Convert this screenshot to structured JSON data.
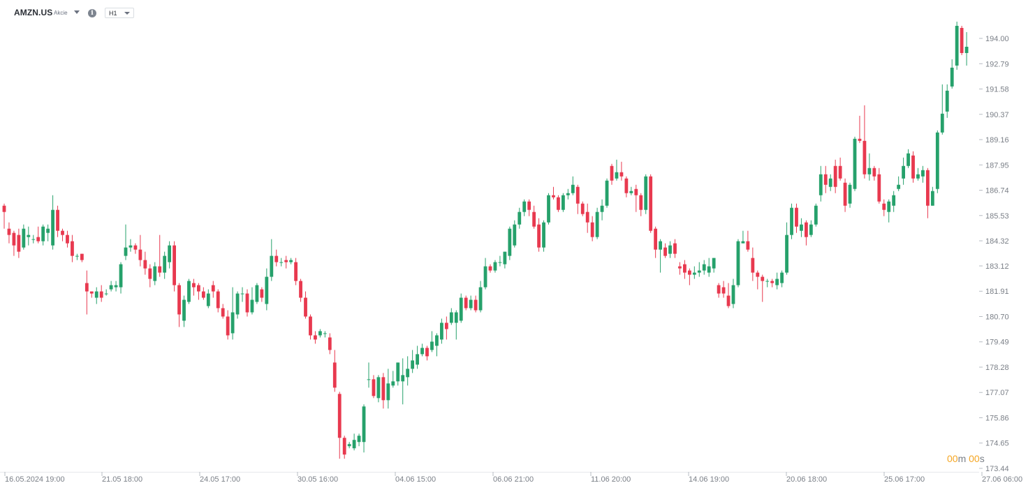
{
  "toolbar": {
    "symbol": "AMZN.US",
    "asset_type": "Akcie",
    "timeframe": "H1",
    "info_icon": "info-icon",
    "symbol_dropdown_icon": "chevron-down-icon",
    "timeframe_dropdown_icon": "chevron-down-icon"
  },
  "countdown": {
    "minutes": "00",
    "minutes_unit": "m",
    "seconds": "00",
    "seconds_unit": "s"
  },
  "colors": {
    "up": "#26a16b",
    "down": "#e8394f",
    "axis_text": "#7a7f87",
    "countdown": "#f5a623"
  },
  "chart_data": {
    "type": "candlestick",
    "symbol": "AMZN.US",
    "timeframe": "H1",
    "ylim": [
      173.44,
      194.8
    ],
    "y_ticks": [
      "194.00",
      "192.79",
      "191.58",
      "190.37",
      "189.16",
      "187.95",
      "186.74",
      "185.53",
      "184.32",
      "183.12",
      "181.91",
      "180.70",
      "179.49",
      "178.28",
      "177.07",
      "175.86",
      "174.65",
      "173.44"
    ],
    "x_tick_labels": [
      "16.05.2024 19:00",
      "21.05 18:00",
      "24.05 17:00",
      "30.05 16:00",
      "04.06 15:00",
      "06.06 21:00",
      "11.06 20:00",
      "14.06 19:00",
      "20.06 18:00",
      "25.06 17:00",
      "27.06 06:00"
    ],
    "candles": [
      [
        186.0,
        185.7,
        186.1,
        184.9
      ],
      [
        184.9,
        184.6,
        185.2,
        184.2
      ],
      [
        184.7,
        184.1,
        184.8,
        183.6
      ],
      [
        184.6,
        183.8,
        184.9,
        183.5
      ],
      [
        184.0,
        184.9,
        185.1,
        183.9
      ],
      [
        184.5,
        184.6,
        185.0,
        184.1
      ],
      [
        184.4,
        184.4,
        184.6,
        184.2
      ],
      [
        184.5,
        184.3,
        185.0,
        184.2
      ],
      [
        184.3,
        185.0,
        185.1,
        184.1
      ],
      [
        184.7,
        184.9,
        185.1,
        184.3
      ],
      [
        184.1,
        185.8,
        186.5,
        183.9
      ],
      [
        185.8,
        184.8,
        186.0,
        184.5
      ],
      [
        184.8,
        184.6,
        184.9,
        184.3
      ],
      [
        184.6,
        184.2,
        184.8,
        184.0
      ],
      [
        184.3,
        183.6,
        184.6,
        183.3
      ],
      [
        183.6,
        183.6,
        183.7,
        183.4
      ],
      [
        183.7,
        183.4,
        183.7,
        183.3
      ],
      [
        182.3,
        181.9,
        182.9,
        180.8
      ],
      [
        181.9,
        181.8,
        181.9,
        181.6
      ],
      [
        181.6,
        181.9,
        182.1,
        181.3
      ],
      [
        181.9,
        181.6,
        182.2,
        181.4
      ],
      [
        181.8,
        181.8,
        182.0,
        181.7
      ],
      [
        182.0,
        182.2,
        182.4,
        181.9
      ],
      [
        182.1,
        182.2,
        182.4,
        181.9
      ],
      [
        182.1,
        183.2,
        183.3,
        181.8
      ],
      [
        183.6,
        184.0,
        185.1,
        183.4
      ],
      [
        184.0,
        184.1,
        184.4,
        183.8
      ],
      [
        184.1,
        183.9,
        184.2,
        183.7
      ],
      [
        183.9,
        183.4,
        184.6,
        183.1
      ],
      [
        183.4,
        183.0,
        183.8,
        182.7
      ],
      [
        183.0,
        182.5,
        183.2,
        182.1
      ],
      [
        182.4,
        183.1,
        183.3,
        182.2
      ],
      [
        183.1,
        182.8,
        184.6,
        182.6
      ],
      [
        182.8,
        183.6,
        183.8,
        182.5
      ],
      [
        183.3,
        184.1,
        184.3,
        183.0
      ],
      [
        184.1,
        182.2,
        184.3,
        181.9
      ],
      [
        182.2,
        180.8,
        182.3,
        180.2
      ],
      [
        180.5,
        181.5,
        181.7,
        180.2
      ],
      [
        181.4,
        182.4,
        182.5,
        181.3
      ],
      [
        182.3,
        182.1,
        182.5,
        181.7
      ],
      [
        182.2,
        181.9,
        182.3,
        181.5
      ],
      [
        181.9,
        181.6,
        182.1,
        181.5
      ],
      [
        181.2,
        181.8,
        182.0,
        181.1
      ],
      [
        182.2,
        181.9,
        182.4,
        181.6
      ],
      [
        181.9,
        181.1,
        182.0,
        180.9
      ],
      [
        181.1,
        180.7,
        181.3,
        180.6
      ],
      [
        180.7,
        179.8,
        181.0,
        179.6
      ],
      [
        179.9,
        180.9,
        182.1,
        179.6
      ],
      [
        180.8,
        181.8,
        181.9,
        180.6
      ],
      [
        181.8,
        181.8,
        182.1,
        181.4
      ],
      [
        181.8,
        180.9,
        182.0,
        180.7
      ],
      [
        180.9,
        181.5,
        182.1,
        180.8
      ],
      [
        181.4,
        182.2,
        182.3,
        181.3
      ],
      [
        182.0,
        181.6,
        182.1,
        181.4
      ],
      [
        181.3,
        182.6,
        183.0,
        181.0
      ],
      [
        182.6,
        183.6,
        184.4,
        182.4
      ],
      [
        183.6,
        183.3,
        183.9,
        183.1
      ],
      [
        183.3,
        183.3,
        183.5,
        183.1
      ],
      [
        183.4,
        183.3,
        183.6,
        183.0
      ],
      [
        183.3,
        183.4,
        183.5,
        183.2
      ],
      [
        183.3,
        182.4,
        183.5,
        182.2
      ],
      [
        182.4,
        181.6,
        182.5,
        181.4
      ],
      [
        181.6,
        180.7,
        181.9,
        180.6
      ],
      [
        180.7,
        179.8,
        180.8,
        179.6
      ],
      [
        179.8,
        179.6,
        180.0,
        179.4
      ],
      [
        179.8,
        180.0,
        180.1,
        179.7
      ],
      [
        179.9,
        179.9,
        180.0,
        179.7
      ],
      [
        179.7,
        179.1,
        179.9,
        178.9
      ],
      [
        178.5,
        177.3,
        179.1,
        177.1
      ],
      [
        177.0,
        174.9,
        177.1,
        173.9
      ],
      [
        174.9,
        174.1,
        175.0,
        173.9
      ],
      [
        174.5,
        174.6,
        174.7,
        174.4
      ],
      [
        174.4,
        174.8,
        175.1,
        174.3
      ],
      [
        174.7,
        175.0,
        175.1,
        174.5
      ],
      [
        174.7,
        176.4,
        176.5,
        174.2
      ],
      [
        177.7,
        177.7,
        178.5,
        177.3
      ],
      [
        177.7,
        176.9,
        177.9,
        176.8
      ],
      [
        176.8,
        177.8,
        177.9,
        176.6
      ],
      [
        177.8,
        176.7,
        178.0,
        176.3
      ],
      [
        176.7,
        177.5,
        178.2,
        176.3
      ],
      [
        177.4,
        177.6,
        178.1,
        177.3
      ],
      [
        177.6,
        178.5,
        178.5,
        177.4
      ],
      [
        177.6,
        177.9,
        178.7,
        176.5
      ],
      [
        177.8,
        178.2,
        178.8,
        177.4
      ],
      [
        178.2,
        178.6,
        179.1,
        178.0
      ],
      [
        178.4,
        178.9,
        179.3,
        178.2
      ],
      [
        178.9,
        179.2,
        179.4,
        178.8
      ],
      [
        179.2,
        178.8,
        179.3,
        178.6
      ],
      [
        179.1,
        179.5,
        180.0,
        179.0
      ],
      [
        179.3,
        179.8,
        179.9,
        178.8
      ],
      [
        179.6,
        180.4,
        180.6,
        179.4
      ],
      [
        180.4,
        180.1,
        180.7,
        179.6
      ],
      [
        180.4,
        180.9,
        181.1,
        180.3
      ],
      [
        180.4,
        180.9,
        181.0,
        179.6
      ],
      [
        180.5,
        181.6,
        181.8,
        180.4
      ],
      [
        181.6,
        181.1,
        181.7,
        181.0
      ],
      [
        181.1,
        181.5,
        181.7,
        181.0
      ],
      [
        181.5,
        181.0,
        181.7,
        180.9
      ],
      [
        181.0,
        182.1,
        182.4,
        180.9
      ],
      [
        182.1,
        183.1,
        183.5,
        182.0
      ],
      [
        183.1,
        182.9,
        183.2,
        182.8
      ],
      [
        182.9,
        183.3,
        183.4,
        182.8
      ],
      [
        183.3,
        183.3,
        183.6,
        183.1
      ],
      [
        183.2,
        183.8,
        183.8,
        183.0
      ],
      [
        183.6,
        184.9,
        185.0,
        183.4
      ],
      [
        184.1,
        185.1,
        185.3,
        184.0
      ],
      [
        185.1,
        185.7,
        185.9,
        184.9
      ],
      [
        185.7,
        186.2,
        186.3,
        185.5
      ],
      [
        186.2,
        185.8,
        186.3,
        185.5
      ],
      [
        185.7,
        185.0,
        186.0,
        184.9
      ],
      [
        185.1,
        184.0,
        185.4,
        183.8
      ],
      [
        184.0,
        185.2,
        185.3,
        183.8
      ],
      [
        185.2,
        186.5,
        186.6,
        185.1
      ],
      [
        186.5,
        186.4,
        186.9,
        186.3
      ],
      [
        186.4,
        185.8,
        186.5,
        185.7
      ],
      [
        185.8,
        186.5,
        186.6,
        185.7
      ],
      [
        186.5,
        186.6,
        186.8,
        186.3
      ],
      [
        186.6,
        187.0,
        187.4,
        186.5
      ],
      [
        186.9,
        186.1,
        187.0,
        185.6
      ],
      [
        186.1,
        185.6,
        186.2,
        185.5
      ],
      [
        185.7,
        185.2,
        186.1,
        184.7
      ],
      [
        185.2,
        184.5,
        185.5,
        184.3
      ],
      [
        184.5,
        185.7,
        185.9,
        184.4
      ],
      [
        185.7,
        186.0,
        186.3,
        185.3
      ],
      [
        186.0,
        187.2,
        187.3,
        185.9
      ],
      [
        187.9,
        187.2,
        188.0,
        187.0
      ],
      [
        187.3,
        187.6,
        188.2,
        187.2
      ],
      [
        187.6,
        187.4,
        188.1,
        187.2
      ],
      [
        187.3,
        186.6,
        187.4,
        186.4
      ],
      [
        186.6,
        186.7,
        186.9,
        186.5
      ],
      [
        186.8,
        186.5,
        187.0,
        185.7
      ],
      [
        186.5,
        185.8,
        186.6,
        185.5
      ],
      [
        185.8,
        187.4,
        187.5,
        185.6
      ],
      [
        187.4,
        184.8,
        187.5,
        184.7
      ],
      [
        184.9,
        183.9,
        185.0,
        183.5
      ],
      [
        183.9,
        184.3,
        184.4,
        182.8
      ],
      [
        184.0,
        183.6,
        184.2,
        183.5
      ],
      [
        183.7,
        184.1,
        184.3,
        183.5
      ],
      [
        184.2,
        183.7,
        184.4,
        183.5
      ],
      [
        183.1,
        183.0,
        183.3,
        182.7
      ],
      [
        183.2,
        182.8,
        183.4,
        182.5
      ],
      [
        182.9,
        182.7,
        183.0,
        182.2
      ],
      [
        182.7,
        182.8,
        183.1,
        182.5
      ],
      [
        182.8,
        182.9,
        183.3,
        182.6
      ],
      [
        182.9,
        183.2,
        183.4,
        182.7
      ],
      [
        182.8,
        183.1,
        183.5,
        182.6
      ],
      [
        183.0,
        183.5,
        183.5,
        182.8
      ],
      [
        182.2,
        181.8,
        182.3,
        181.6
      ],
      [
        182.1,
        181.8,
        182.4,
        181.6
      ],
      [
        181.7,
        181.2,
        182.3,
        181.1
      ],
      [
        181.3,
        182.2,
        182.5,
        181.1
      ],
      [
        182.2,
        184.3,
        184.4,
        182.1
      ],
      [
        184.2,
        184.3,
        184.8,
        184.2
      ],
      [
        184.3,
        183.9,
        184.8,
        183.8
      ],
      [
        183.5,
        182.8,
        184.0,
        182.4
      ],
      [
        182.8,
        182.6,
        182.9,
        182.0
      ],
      [
        182.6,
        182.4,
        182.7,
        181.4
      ],
      [
        182.4,
        182.4,
        182.5,
        182.1
      ],
      [
        182.4,
        182.3,
        182.5,
        182.1
      ],
      [
        182.2,
        182.5,
        182.8,
        182.0
      ],
      [
        182.3,
        182.8,
        182.9,
        182.1
      ],
      [
        182.8,
        184.6,
        185.2,
        182.7
      ],
      [
        184.6,
        185.9,
        186.1,
        184.4
      ],
      [
        185.9,
        185.0,
        186.1,
        184.7
      ],
      [
        184.8,
        185.1,
        185.4,
        184.5
      ],
      [
        185.2,
        184.5,
        185.3,
        184.1
      ],
      [
        184.6,
        185.1,
        185.3,
        184.5
      ],
      [
        185.1,
        186.0,
        186.1,
        185.0
      ],
      [
        186.5,
        187.5,
        187.9,
        186.2
      ],
      [
        187.5,
        187.0,
        187.9,
        186.6
      ],
      [
        186.9,
        187.3,
        187.5,
        186.7
      ],
      [
        187.9,
        186.9,
        188.2,
        186.6
      ],
      [
        187.9,
        187.3,
        188.3,
        187.2
      ],
      [
        187.1,
        186.0,
        187.3,
        185.7
      ],
      [
        186.1,
        187.0,
        187.1,
        185.9
      ],
      [
        186.8,
        189.2,
        189.3,
        186.7
      ],
      [
        189.2,
        189.1,
        190.3,
        189.0
      ],
      [
        189.1,
        187.5,
        190.8,
        187.3
      ],
      [
        187.5,
        187.8,
        188.5,
        187.2
      ],
      [
        187.8,
        187.4,
        187.9,
        187.2
      ],
      [
        187.5,
        186.2,
        187.8,
        186.1
      ],
      [
        186.1,
        185.8,
        186.3,
        185.5
      ],
      [
        185.7,
        186.2,
        186.3,
        185.2
      ],
      [
        186.0,
        186.5,
        186.7,
        185.7
      ],
      [
        186.8,
        187.0,
        187.4,
        186.7
      ],
      [
        187.3,
        187.9,
        188.3,
        187.0
      ],
      [
        187.9,
        188.5,
        188.7,
        187.8
      ],
      [
        188.4,
        187.3,
        188.6,
        187.1
      ],
      [
        187.3,
        187.5,
        187.8,
        187.2
      ],
      [
        187.4,
        187.7,
        187.9,
        187.1
      ],
      [
        187.7,
        186.0,
        187.8,
        185.4
      ],
      [
        186.0,
        186.7,
        186.9,
        186.0
      ],
      [
        186.8,
        189.5,
        189.6,
        186.6
      ],
      [
        189.5,
        190.4,
        191.8,
        189.4
      ],
      [
        190.5,
        191.5,
        191.8,
        190.2
      ],
      [
        191.7,
        192.6,
        193.0,
        191.6
      ],
      [
        192.7,
        194.6,
        194.8,
        192.5
      ],
      [
        194.5,
        193.3,
        194.6,
        193.2
      ],
      [
        193.3,
        193.6,
        194.3,
        192.7
      ]
    ]
  }
}
